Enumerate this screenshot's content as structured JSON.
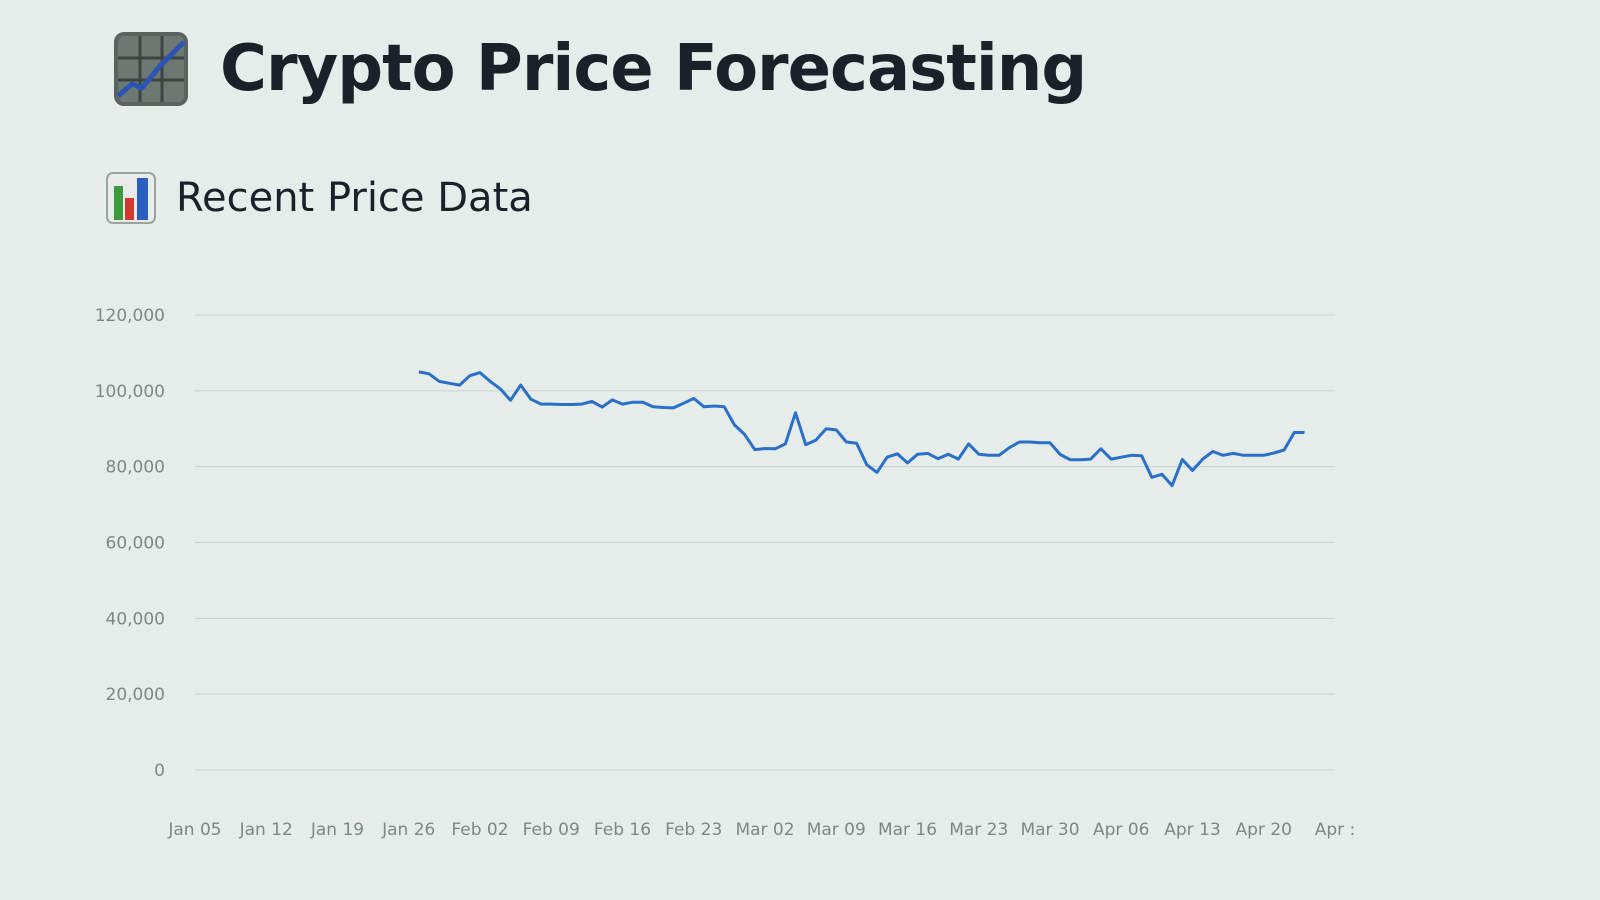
{
  "header": {
    "title": "Crypto Price Forecasting",
    "title_icon": "chart-increasing-icon"
  },
  "section": {
    "title": "Recent Price Data",
    "icon": "bar-chart-icon"
  },
  "colors": {
    "line": "#2a6fc8",
    "grid": "#c9d2cf",
    "tick_text": "#7b8886",
    "title_text": "#1c2029"
  },
  "chart_data": {
    "type": "line",
    "title": "",
    "xlabel": "",
    "ylabel": "",
    "ylim": [
      0,
      120000
    ],
    "yticks": [
      0,
      20000,
      40000,
      60000,
      80000,
      100000,
      120000
    ],
    "ytick_labels": [
      "0",
      "20,000",
      "40,000",
      "60,000",
      "80,000",
      "100,000",
      "120,000"
    ],
    "xlim": [
      "2025-01-05",
      "2025-04-27"
    ],
    "xticks": [
      "2025-01-05",
      "2025-01-12",
      "2025-01-19",
      "2025-01-26",
      "2025-02-02",
      "2025-02-09",
      "2025-02-16",
      "2025-02-23",
      "2025-03-02",
      "2025-03-09",
      "2025-03-16",
      "2025-03-23",
      "2025-03-30",
      "2025-04-06",
      "2025-04-13",
      "2025-04-20",
      "2025-04-27"
    ],
    "xtick_labels": [
      "Jan 05",
      "Jan 12",
      "Jan 19",
      "Jan 26",
      "Feb 02",
      "Feb 09",
      "Feb 16",
      "Feb 23",
      "Mar 02",
      "Mar 09",
      "Mar 16",
      "Mar 23",
      "Mar 30",
      "Apr 06",
      "Apr 13",
      "Apr 20",
      "Apr :"
    ],
    "grid": true,
    "series": [
      {
        "x": [
          "2025-01-27",
          "2025-01-28",
          "2025-01-29",
          "2025-01-30",
          "2025-01-31",
          "2025-02-01",
          "2025-02-02",
          "2025-02-03",
          "2025-02-04",
          "2025-02-05",
          "2025-02-06",
          "2025-02-07",
          "2025-02-08",
          "2025-02-09",
          "2025-02-10",
          "2025-02-11",
          "2025-02-12",
          "2025-02-13",
          "2025-02-14",
          "2025-02-15",
          "2025-02-16",
          "2025-02-17",
          "2025-02-18",
          "2025-02-19",
          "2025-02-20",
          "2025-02-21",
          "2025-02-22",
          "2025-02-23",
          "2025-02-24",
          "2025-02-25",
          "2025-02-26",
          "2025-02-27",
          "2025-02-28",
          "2025-03-01",
          "2025-03-02",
          "2025-03-03",
          "2025-03-04",
          "2025-03-05",
          "2025-03-06",
          "2025-03-07",
          "2025-03-08",
          "2025-03-09",
          "2025-03-10",
          "2025-03-11",
          "2025-03-12",
          "2025-03-13",
          "2025-03-14",
          "2025-03-15",
          "2025-03-16",
          "2025-03-17",
          "2025-03-18",
          "2025-03-19",
          "2025-03-20",
          "2025-03-21",
          "2025-03-22",
          "2025-03-23",
          "2025-03-24",
          "2025-03-25",
          "2025-03-26",
          "2025-03-27",
          "2025-03-28",
          "2025-03-29",
          "2025-03-30",
          "2025-03-31",
          "2025-04-01",
          "2025-04-02",
          "2025-04-03",
          "2025-04-04",
          "2025-04-05",
          "2025-04-06",
          "2025-04-07",
          "2025-04-08",
          "2025-04-09",
          "2025-04-10",
          "2025-04-11",
          "2025-04-12",
          "2025-04-13",
          "2025-04-14",
          "2025-04-15",
          "2025-04-16",
          "2025-04-17",
          "2025-04-18",
          "2025-04-19",
          "2025-04-20",
          "2025-04-21",
          "2025-04-22",
          "2025-04-23",
          "2025-04-24"
        ],
        "values": [
          105000,
          104500,
          102500,
          102000,
          101500,
          104000,
          104800,
          102500,
          100500,
          97500,
          101500,
          97800,
          96500,
          96500,
          96400,
          96400,
          96500,
          97200,
          95700,
          97600,
          96500,
          97000,
          97000,
          95800,
          95600,
          95500,
          96700,
          98000,
          95800,
          96000,
          95800,
          91000,
          88500,
          84500,
          84800,
          84700,
          86000,
          94200,
          85800,
          87000,
          90000,
          89700,
          86500,
          86200,
          80500,
          78500,
          82500,
          83400,
          81000,
          83300,
          83500,
          82100,
          83300,
          82000,
          86000,
          83300,
          83000,
          83000,
          85000,
          86500,
          86500,
          86300,
          86300,
          83200,
          81800,
          81800,
          82000,
          84700,
          82000,
          82500,
          83000,
          82900,
          77200,
          78000,
          75000,
          81900,
          79000,
          82000,
          84000,
          83000,
          83500,
          83000,
          83000,
          83000,
          83600,
          84400,
          89000,
          89000
        ]
      }
    ]
  }
}
